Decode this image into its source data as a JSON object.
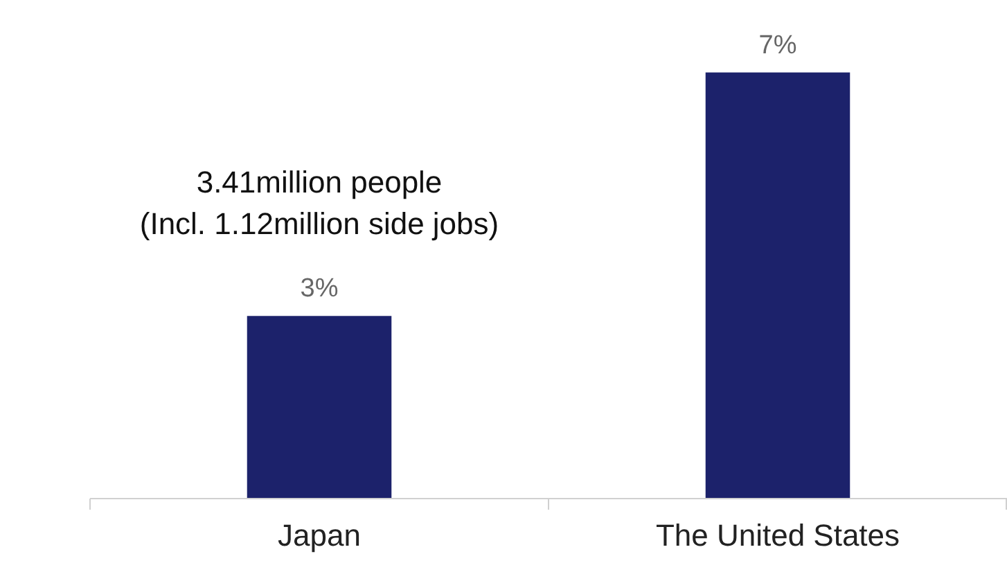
{
  "chart_data": {
    "type": "bar",
    "categories": [
      "Japan",
      "The United States"
    ],
    "values": [
      3,
      7
    ],
    "color": "#1c226b",
    "value_labels": [
      "3%",
      "7%"
    ],
    "annotations": [
      "3.41million people\n(Incl. 1.12million side jobs)"
    ]
  }
}
